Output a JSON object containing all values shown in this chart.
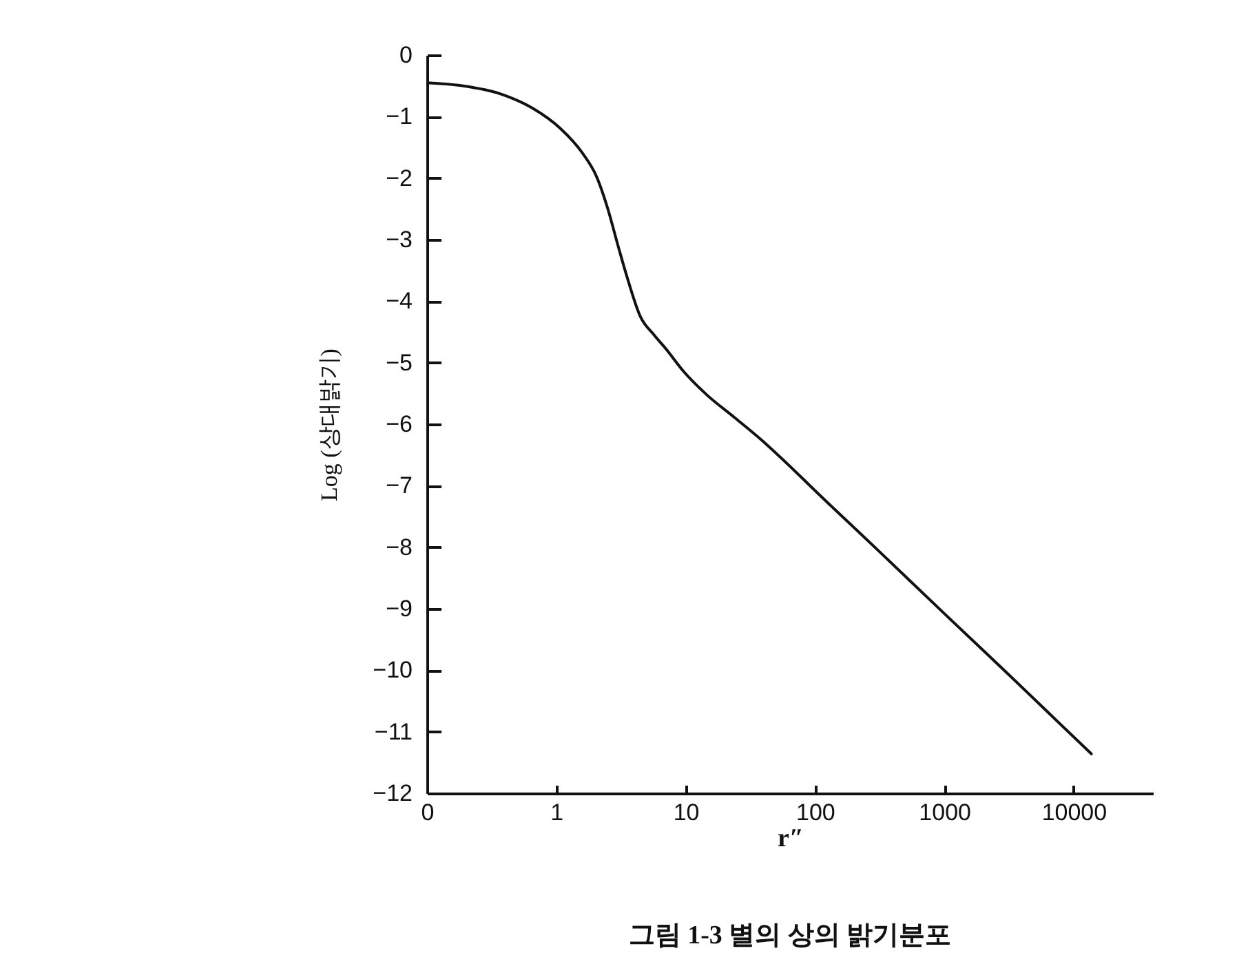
{
  "chart_data": {
    "type": "line",
    "title": "그림 1-3  별의 상의 밝기분포",
    "xlabel": "r″",
    "ylabel": "Log (상대밝기)",
    "x": [
      0.1,
      0.19,
      0.37,
      0.65,
      1.07,
      1.6,
      2.05,
      2.5,
      3.0,
      3.49,
      4.46,
      5.7,
      7,
      9.7,
      14.5,
      23.8,
      38.7,
      60.8,
      100,
      300,
      1000,
      3000,
      13700
    ],
    "values": [
      -0.45,
      -0.5,
      -0.63,
      -0.86,
      -1.19,
      -1.6,
      -1.98,
      -2.5,
      -3.1,
      -3.58,
      -4.25,
      -4.55,
      -4.77,
      -5.15,
      -5.52,
      -5.89,
      -6.26,
      -6.64,
      -7.08,
      -8.03,
      -9.08,
      -10.03,
      -11.36
    ],
    "color": "#111111",
    "line_style": "solid",
    "log": "x",
    "xlim": [
      0.1,
      41000
    ],
    "ylim": [
      -12,
      0
    ],
    "xticks": [
      {
        "value": 0.1,
        "label": "0"
      },
      1,
      10,
      100,
      1000,
      10000
    ],
    "yticks": [
      0,
      -1,
      -2,
      -3,
      -4,
      -5,
      -6,
      -7,
      -8,
      -9,
      -10,
      -11,
      -12
    ]
  }
}
